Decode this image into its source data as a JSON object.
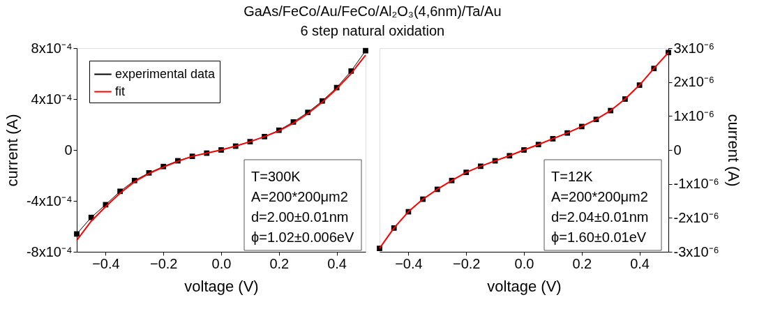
{
  "chart_data": [
    {
      "type": "line",
      "title": "GaAs/FeCo/Au/FeCo/Al₂O₃(4,6nm)/Ta/Au",
      "subtitle": "6 step natural oxidation",
      "xlabel": "voltage (V)",
      "ylabel": "current (A)",
      "xlim": [
        -0.5,
        0.5
      ],
      "xticks": [
        -0.4,
        -0.2,
        {
          "value": 0,
          "label": "0.0"
        },
        0.2,
        0.4
      ],
      "ylim": [
        -0.0008,
        0.0008
      ],
      "yticks": [
        {
          "value": -0.0008,
          "label": "-8x10⁻⁴"
        },
        {
          "value": -0.0004,
          "label": "-4x10⁻⁴"
        },
        {
          "value": 0,
          "label": "0"
        },
        {
          "value": 0.0004,
          "label": "4x10⁻⁴"
        },
        {
          "value": 0.0008,
          "label": "8x10⁻⁴"
        }
      ],
      "x": [
        -0.5,
        -0.45,
        -0.4,
        -0.35,
        -0.3,
        -0.25,
        -0.2,
        -0.15,
        -0.1,
        -0.05,
        0,
        0.05,
        0.1,
        0.15,
        0.2,
        0.25,
        0.3,
        0.35,
        0.4,
        0.45,
        0.5
      ],
      "series": [
        {
          "name": "experimental data",
          "color": "#000000",
          "marker": "square",
          "values": [
            -0.00066,
            -0.00053,
            -0.00043,
            -0.000325,
            -0.00024,
            -0.00018,
            -0.00013,
            -8.5e-05,
            -5e-05,
            -2.5e-05,
            0,
            3e-05,
            6.5e-05,
            0.000105,
            0.000155,
            0.00022,
            0.000295,
            0.000385,
            0.00049,
            0.00062,
            0.00078
          ]
        },
        {
          "name": "fit",
          "color": "#ff0000",
          "marker": "none",
          "values": [
            -0.00071,
            -0.00056,
            -0.000445,
            -0.00034,
            -0.00025,
            -0.000185,
            -0.000135,
            -9e-05,
            -5e-05,
            -2.5e-05,
            0,
            3e-05,
            6.5e-05,
            0.000105,
            0.00015,
            0.00021,
            0.000285,
            0.000375,
            0.00048,
            0.0006,
            0.000745
          ]
        }
      ],
      "legend": "top left",
      "grid": false,
      "annotations": [
        "T=300K",
        "A=200*200μm2",
        "d=2.00±0.01nm",
        "ϕ=1.02±0.006eV"
      ]
    },
    {
      "type": "line",
      "xlabel": "voltage (V)",
      "y2label": "current (A)",
      "xlim": [
        -0.5,
        0.5
      ],
      "xticks": [
        -0.4,
        -0.2,
        {
          "value": 0,
          "label": "0.0"
        },
        0.2,
        0.4
      ],
      "y2lim": [
        -3e-06,
        3e-06
      ],
      "y2ticks": [
        {
          "value": -3e-06,
          "label": "-3x10⁻⁶"
        },
        {
          "value": -2e-06,
          "label": "-2x10⁻⁶"
        },
        {
          "value": -1e-06,
          "label": "-1x10⁻⁶"
        },
        {
          "value": 0,
          "label": "0"
        },
        {
          "value": 1e-06,
          "label": "1x10⁻⁶"
        },
        {
          "value": 2e-06,
          "label": "2x10⁻⁶"
        },
        {
          "value": 3e-06,
          "label": "3x10⁻⁶"
        }
      ],
      "x": [
        -0.5,
        -0.45,
        -0.4,
        -0.35,
        -0.3,
        -0.25,
        -0.2,
        -0.15,
        -0.1,
        -0.05,
        0,
        0.05,
        0.1,
        0.15,
        0.2,
        0.25,
        0.3,
        0.35,
        0.4,
        0.45,
        0.5
      ],
      "series": [
        {
          "color": "#000000",
          "marker": "square",
          "axis": "y2",
          "values": [
            -2.9e-06,
            -2.3e-06,
            -1.82e-06,
            -1.45e-06,
            -1.16e-06,
            -9e-07,
            -6.6e-07,
            -4.8e-07,
            -3.2e-07,
            -1.7e-07,
            0,
            1.6e-07,
            3.3e-07,
            5e-07,
            6.9e-07,
            9e-07,
            1.16e-06,
            1.5e-06,
            1.91e-06,
            2.4e-06,
            2.87e-06
          ]
        },
        {
          "color": "#ff0000",
          "marker": "none",
          "axis": "y2",
          "values": [
            -2.9e-06,
            -2.3e-06,
            -1.82e-06,
            -1.45e-06,
            -1.16e-06,
            -9e-07,
            -6.6e-07,
            -4.8e-07,
            -3.2e-07,
            -1.7e-07,
            0,
            1.6e-07,
            3.3e-07,
            5e-07,
            6.9e-07,
            9e-07,
            1.16e-06,
            1.5e-06,
            1.91e-06,
            2.4e-06,
            2.87e-06
          ]
        }
      ],
      "legend": false,
      "grid": false,
      "annotations": [
        "T=12K",
        "A=200*200μm2",
        "d=2.04±0.01nm",
        "ϕ=1.60±0.01eV"
      ]
    }
  ]
}
